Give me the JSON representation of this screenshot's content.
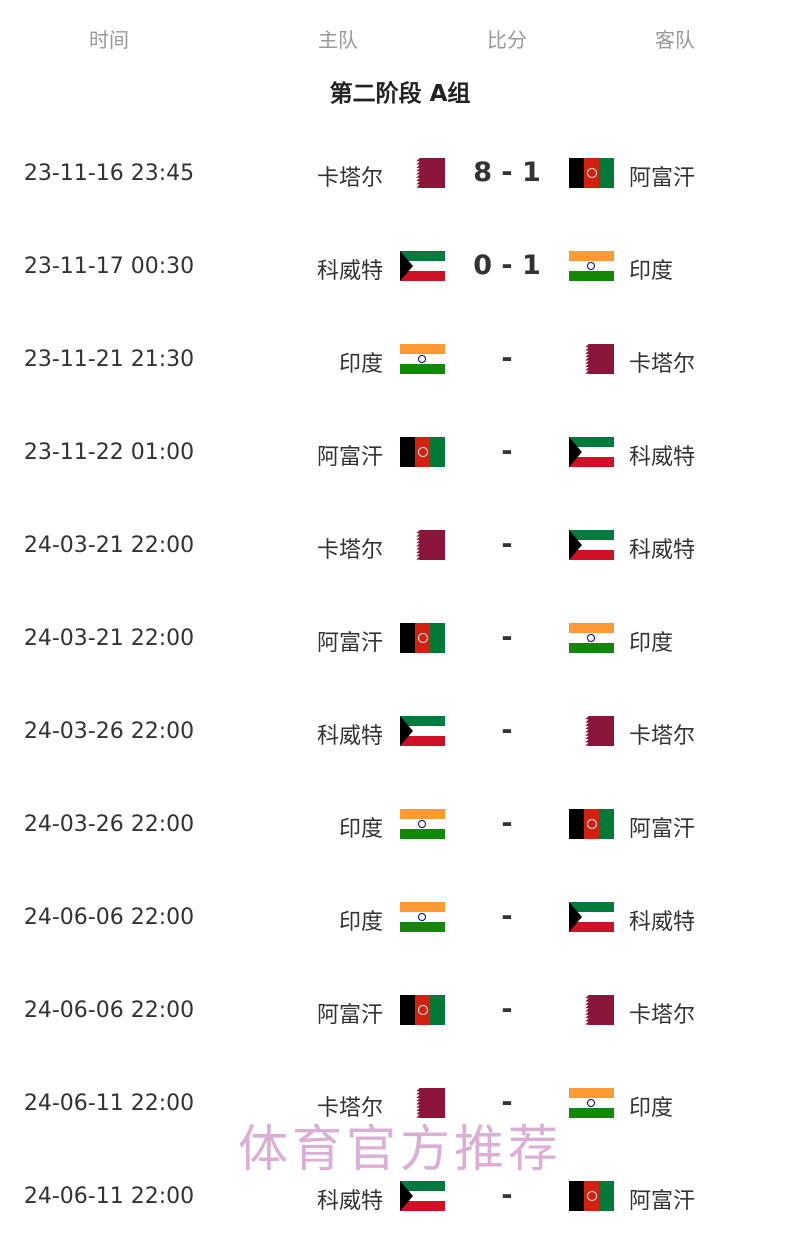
{
  "header": {
    "time": "时间",
    "home": "主队",
    "score": "比分",
    "away": "客队"
  },
  "group_title": "第二阶段 A组",
  "matches": [
    {
      "time": "23-11-16 23:45",
      "home": "卡塔尔",
      "home_flag": "qatar",
      "score": "8 - 1",
      "away": "阿富汗",
      "away_flag": "afghanistan"
    },
    {
      "time": "23-11-17 00:30",
      "home": "科威特",
      "home_flag": "kuwait",
      "score": "0 - 1",
      "away": "印度",
      "away_flag": "india"
    },
    {
      "time": "23-11-21 21:30",
      "home": "印度",
      "home_flag": "india",
      "score": "-",
      "away": "卡塔尔",
      "away_flag": "qatar"
    },
    {
      "time": "23-11-22 01:00",
      "home": "阿富汗",
      "home_flag": "afghanistan",
      "score": "-",
      "away": "科威特",
      "away_flag": "kuwait"
    },
    {
      "time": "24-03-21 22:00",
      "home": "卡塔尔",
      "home_flag": "qatar",
      "score": "-",
      "away": "科威特",
      "away_flag": "kuwait"
    },
    {
      "time": "24-03-21 22:00",
      "home": "阿富汗",
      "home_flag": "afghanistan",
      "score": "-",
      "away": "印度",
      "away_flag": "india"
    },
    {
      "time": "24-03-26 22:00",
      "home": "科威特",
      "home_flag": "kuwait",
      "score": "-",
      "away": "卡塔尔",
      "away_flag": "qatar"
    },
    {
      "time": "24-03-26 22:00",
      "home": "印度",
      "home_flag": "india",
      "score": "-",
      "away": "阿富汗",
      "away_flag": "afghanistan"
    },
    {
      "time": "24-06-06 22:00",
      "home": "印度",
      "home_flag": "india",
      "score": "-",
      "away": "科威特",
      "away_flag": "kuwait"
    },
    {
      "time": "24-06-06 22:00",
      "home": "阿富汗",
      "home_flag": "afghanistan",
      "score": "-",
      "away": "卡塔尔",
      "away_flag": "qatar"
    },
    {
      "time": "24-06-11 22:00",
      "home": "卡塔尔",
      "home_flag": "qatar",
      "score": "-",
      "away": "印度",
      "away_flag": "india"
    },
    {
      "time": "24-06-11 22:00",
      "home": "科威特",
      "home_flag": "kuwait",
      "score": "-",
      "away": "阿富汗",
      "away_flag": "afghanistan"
    }
  ],
  "watermark": "体育官方推荐"
}
